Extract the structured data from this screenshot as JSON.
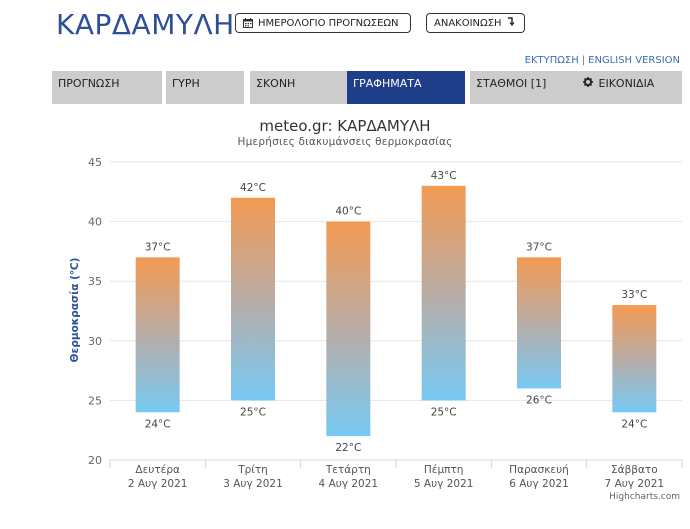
{
  "header": {
    "city": "ΚΑΡΔΑΜΥΛΗ",
    "calendar_button": "ΗΜΕΡΟΛΟΓΙΟ ΠΡΟΓΝΩΣΕΩΝ",
    "announcement_button": "ΑΝΑΚΟΙΝΩΣΗ",
    "print_link": "ΕΚΤΥΠΩΣΗ",
    "separator": "|",
    "english_link": "ENGLISH VERSION"
  },
  "tabs": [
    {
      "label": "ΠΡΟΓΝΩΣΗ",
      "active": false
    },
    {
      "label": "ΓΥΡΗ",
      "active": false
    },
    {
      "label": "ΣΚΟΝΗ",
      "active": false
    },
    {
      "label": "ΓΡΑΦΗΜΑΤΑ",
      "active": true
    },
    {
      "label": "ΣΤΑΘΜΟΙ [1]",
      "active": false
    },
    {
      "label": "ΕΙΚΟΝΙΔΙΑ",
      "active": false
    }
  ],
  "colors": {
    "brand_blue": "#2c4f96",
    "active_tab": "#1e3e8a",
    "tab_bg": "#cccccc",
    "bar_top": "#f39a52",
    "bar_bottom": "#77c9f4"
  },
  "icons": {
    "calendar": "calendar-icon",
    "announcement": "corner-arrow-icon",
    "widgets": "gear-icon"
  },
  "chart_data": {
    "type": "columnrange",
    "title": "meteo.gr: ΚΑΡΔΑΜΥΛΗ",
    "subtitle": "Ημερήσιες διακυμάνσεις θερμοκρασίας",
    "ylabel": "Θερμοκρασία (℃)",
    "ylim": [
      20,
      45
    ],
    "yticks": [
      20,
      25,
      30,
      35,
      40,
      45
    ],
    "grid": true,
    "categories": [
      [
        "Δευτέρα",
        "2 Αυγ 2021"
      ],
      [
        "Τρίτη",
        "3 Αυγ 2021"
      ],
      [
        "Τετάρτη",
        "4 Αυγ 2021"
      ],
      [
        "Πέμπτη",
        "5 Αυγ 2021"
      ],
      [
        "Παρασκευή",
        "6 Αυγ 2021"
      ],
      [
        "Σάββατο",
        "7 Αυγ 2021"
      ]
    ],
    "low": [
      24,
      25,
      22,
      25,
      26,
      24
    ],
    "high": [
      37,
      42,
      40,
      43,
      37,
      33
    ],
    "unit": "°C",
    "credits": "Highcharts.com"
  }
}
